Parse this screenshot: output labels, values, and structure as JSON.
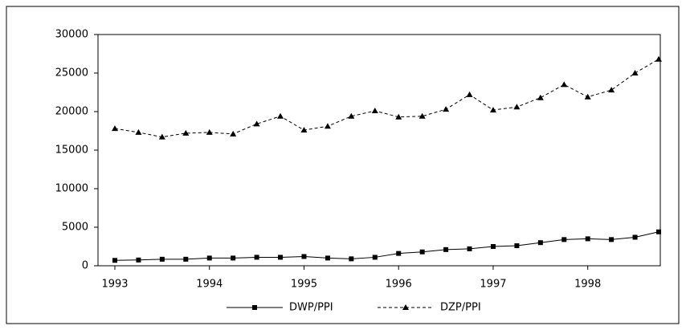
{
  "chart_data": {
    "type": "line",
    "categories": [
      "1993",
      null,
      null,
      null,
      "1994",
      null,
      null,
      null,
      "1995",
      null,
      null,
      null,
      "1996",
      null,
      null,
      null,
      "1997",
      null,
      null,
      null,
      "1998",
      null,
      null,
      null
    ],
    "series": [
      {
        "name": "DWP/PPI",
        "color": "#000000",
        "line_style": "solid",
        "marker": "square",
        "values": [
          700,
          750,
          850,
          850,
          1000,
          1000,
          1100,
          1100,
          1200,
          1000,
          900,
          1100,
          1600,
          1800,
          2100,
          2200,
          2500,
          2600,
          3000,
          3400,
          3500,
          3400,
          3700,
          4400
        ]
      },
      {
        "name": "DZP/PPI",
        "color": "#000000",
        "line_style": "dashed",
        "marker": "triangle",
        "values": [
          17800,
          17300,
          16700,
          17200,
          17300,
          17100,
          18400,
          19400,
          17600,
          18100,
          19400,
          20100,
          19300,
          19400,
          20300,
          22200,
          20200,
          20600,
          21800,
          23500,
          21900,
          22800,
          25000,
          26800
        ]
      }
    ],
    "ylim": [
      0,
      30000
    ],
    "yticks": [
      0,
      5000,
      10000,
      15000,
      20000,
      25000,
      30000
    ],
    "legend": "bottom"
  }
}
